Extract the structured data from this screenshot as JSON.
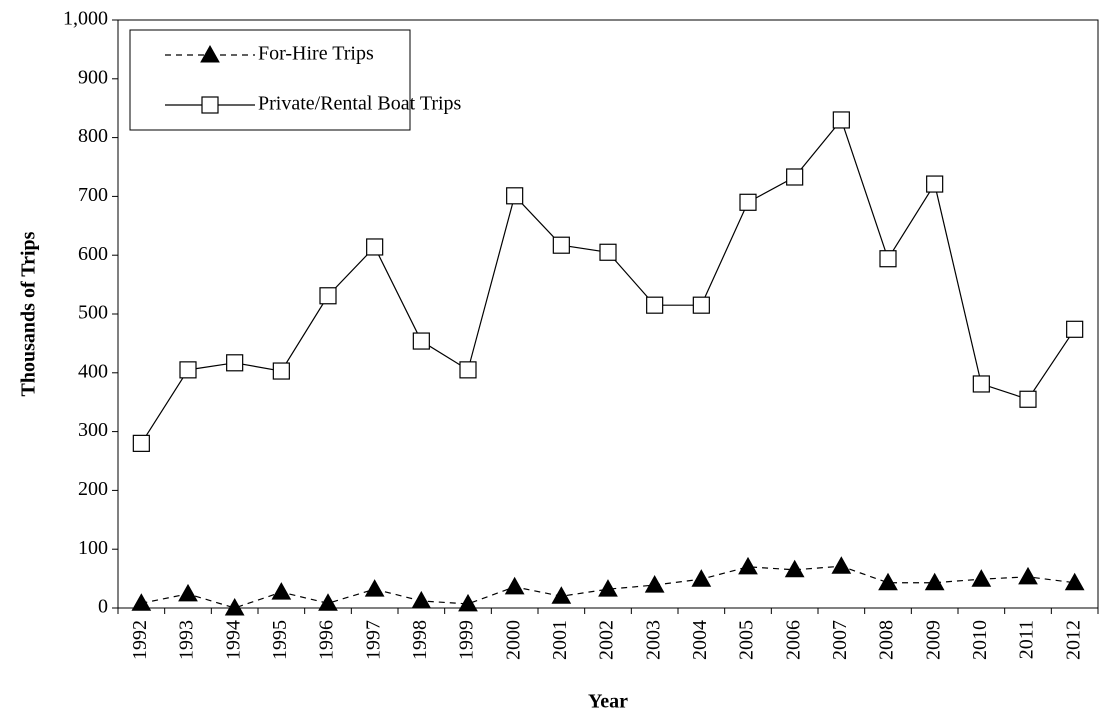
{
  "chart_data": {
    "type": "line",
    "x_label": "Year",
    "y_label": "Thousands of Trips",
    "categories": [
      "1992",
      "1993",
      "1994",
      "1995",
      "1996",
      "1997",
      "1998",
      "1999",
      "2000",
      "2001",
      "2002",
      "2003",
      "2004",
      "2005",
      "2006",
      "2007",
      "2008",
      "2009",
      "2010",
      "2011",
      "2012"
    ],
    "series": [
      {
        "name": "For-Hire Trips",
        "color": "#000000",
        "marker": "triangle",
        "line_style": "dashed",
        "values": [
          8,
          24,
          0,
          27,
          8,
          32,
          12,
          7,
          36,
          20,
          32,
          39,
          49,
          70,
          65,
          71,
          43,
          43,
          49,
          53,
          43
        ]
      },
      {
        "name": "Private/Rental Boat Trips",
        "color": "#000000",
        "marker": "square",
        "line_style": "solid",
        "values": [
          280,
          405,
          417,
          403,
          531,
          614,
          454,
          405,
          701,
          617,
          605,
          515,
          515,
          690,
          733,
          830,
          594,
          721,
          381,
          355,
          474
        ]
      }
    ],
    "ylim": [
      0,
      1000
    ],
    "yticks": [
      0,
      100,
      200,
      300,
      400,
      500,
      600,
      700,
      800,
      900,
      {
        "value": 1000,
        "label": "1,000"
      }
    ],
    "legend": "upper left"
  }
}
